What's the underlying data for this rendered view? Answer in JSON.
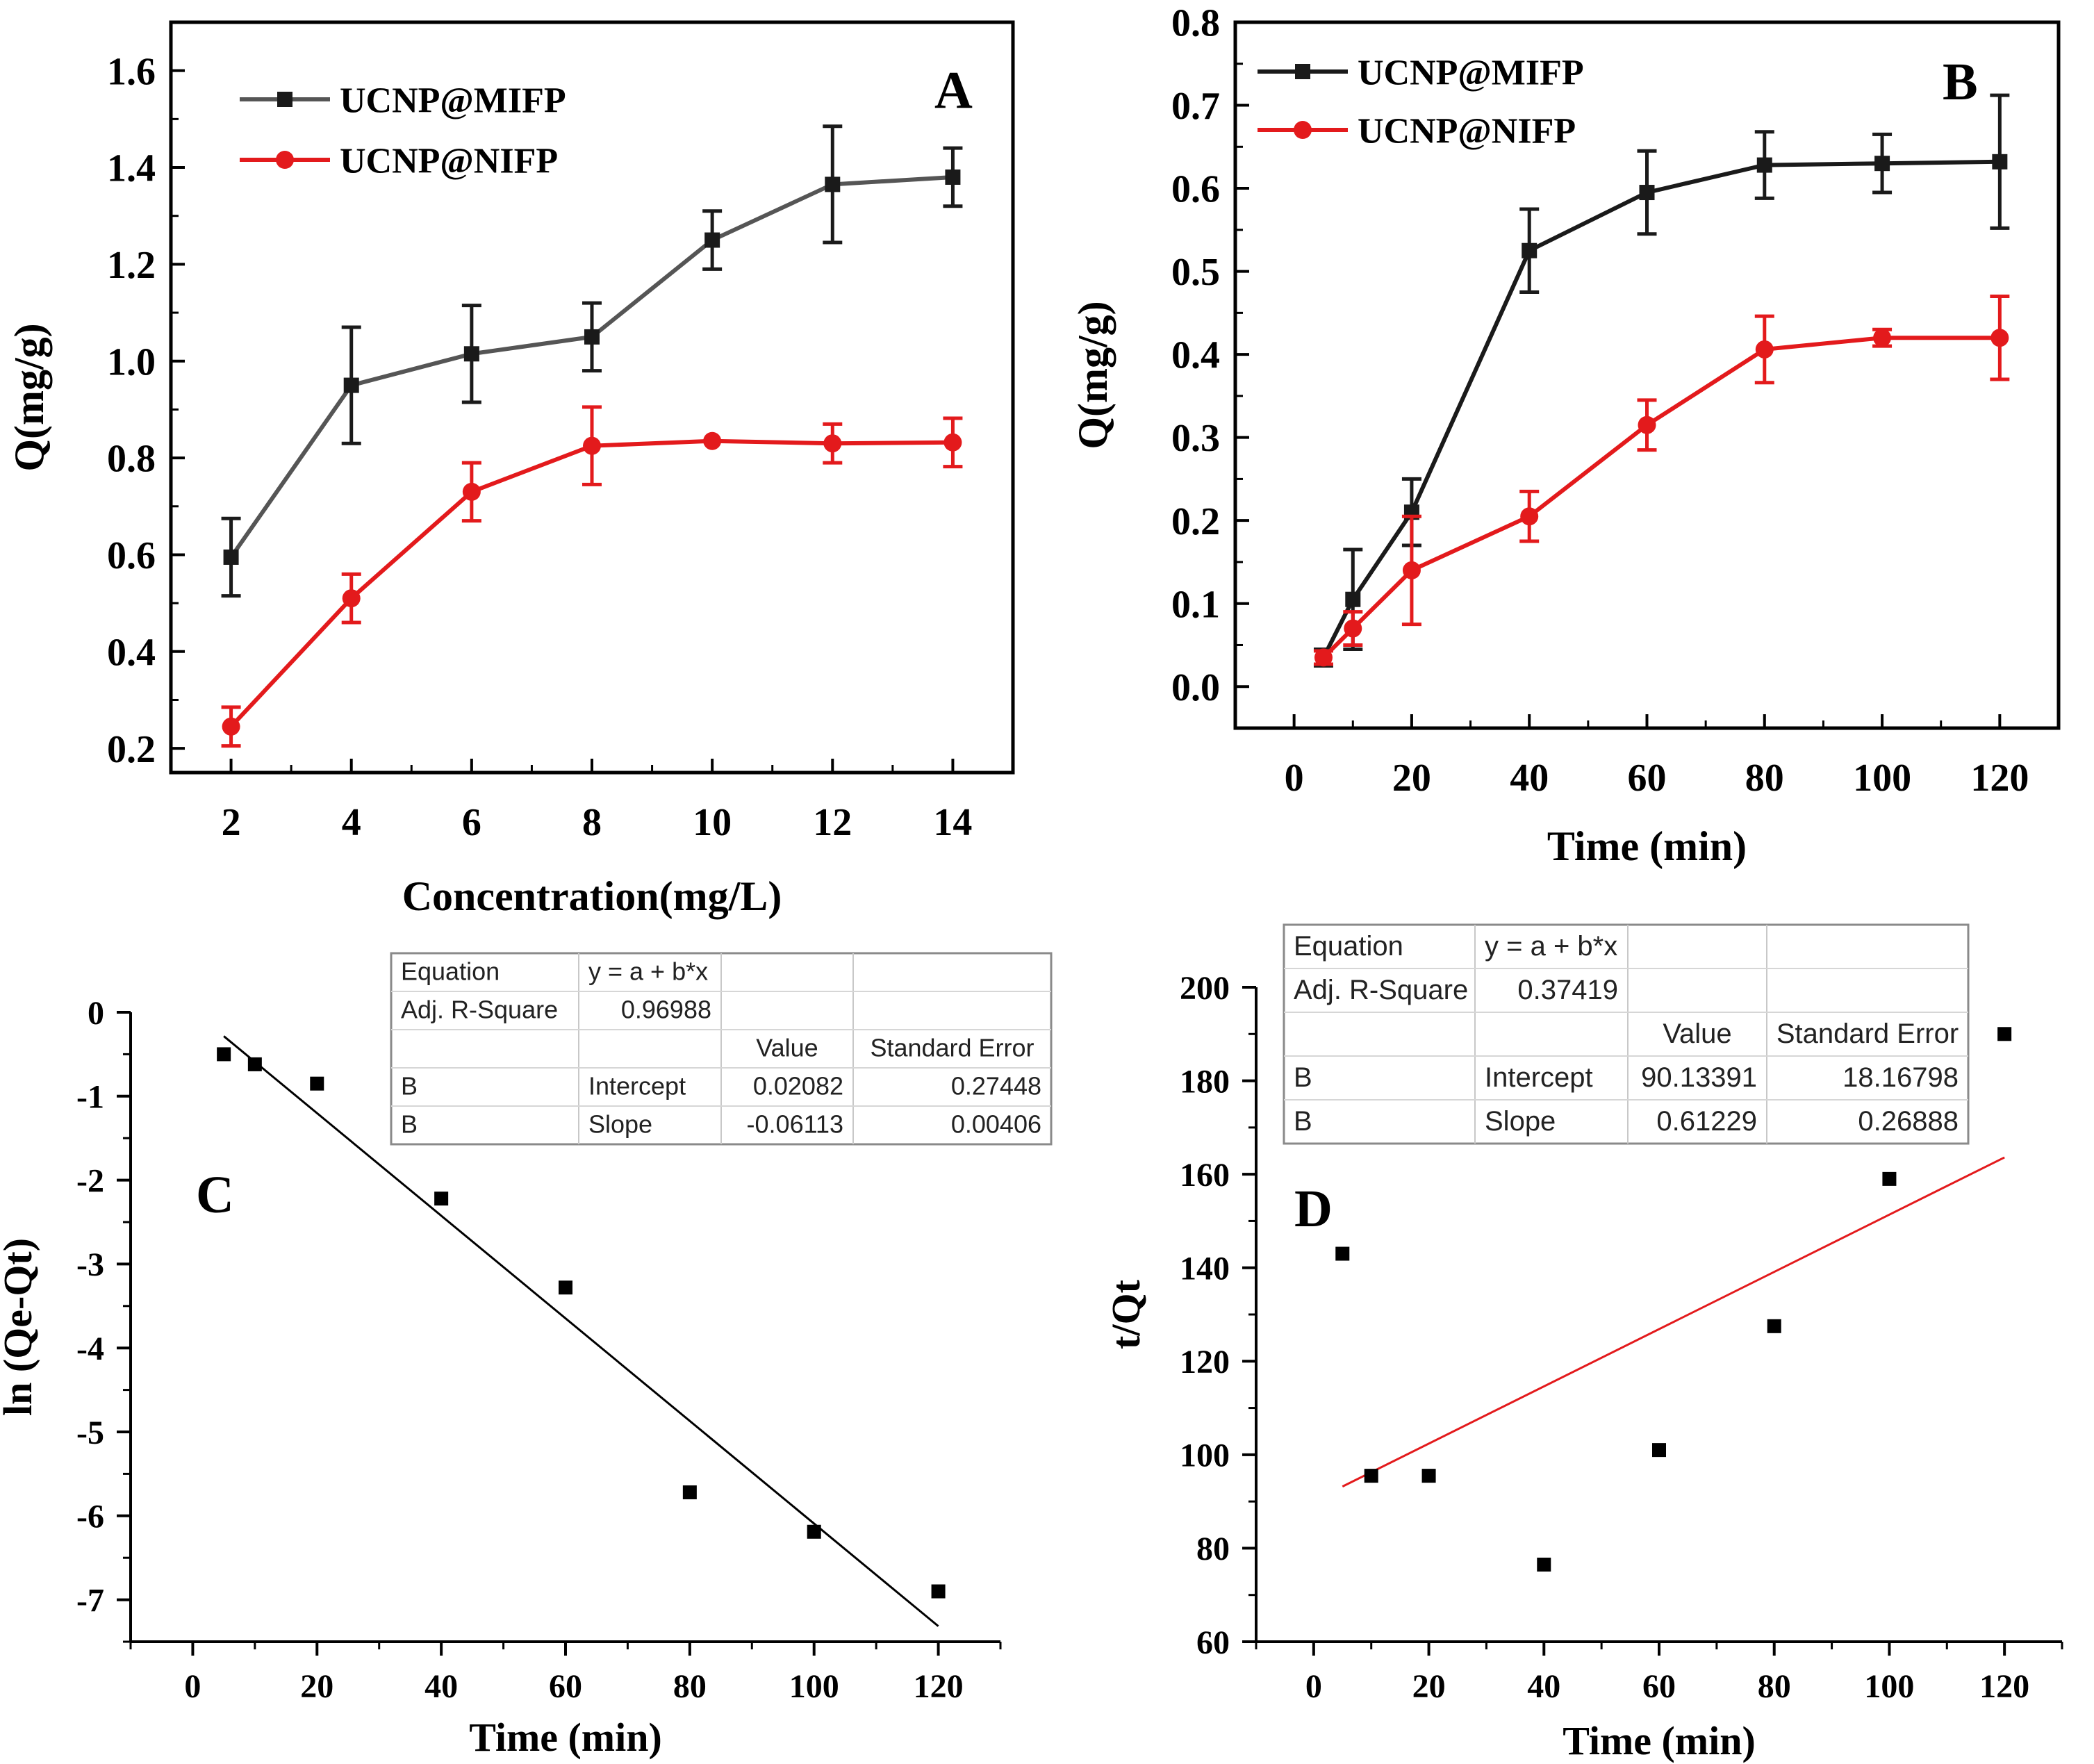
{
  "colors": {
    "black_series": "#1a1a1a",
    "red_series": "#e31a1c",
    "fit_line_red": "#e31a1c",
    "gray_line": "#555555"
  },
  "chart_data": [
    {
      "panel": "A",
      "type": "line",
      "panel_label": "A",
      "xlabel": "Concentration(mg/L)",
      "ylabel": "Q(mg/g)",
      "xlim": [
        1,
        15
      ],
      "ylim": [
        0.15,
        1.7
      ],
      "xticks": [
        2,
        4,
        6,
        8,
        10,
        12,
        14
      ],
      "yticks": [
        0.2,
        0.4,
        0.6,
        0.8,
        1.0,
        1.2,
        1.4,
        1.6
      ],
      "ytick_labels": [
        "0.2",
        "0.4",
        "0.6",
        "0.8",
        "1.0",
        "1.2",
        "1.4",
        "1.6"
      ],
      "legend_position": "top-left",
      "series": [
        {
          "name": "UCNP@MIFP",
          "color": "#1a1a1a",
          "marker": "square",
          "x": [
            2,
            4,
            6,
            8,
            10,
            12,
            14
          ],
          "y": [
            0.595,
            0.95,
            1.015,
            1.05,
            1.25,
            1.365,
            1.38
          ],
          "err": [
            0.08,
            0.12,
            0.1,
            0.07,
            0.06,
            0.12,
            0.06
          ]
        },
        {
          "name": "UCNP@NIFP",
          "color": "#e31a1c",
          "marker": "circle",
          "x": [
            2,
            4,
            6,
            8,
            10,
            12,
            14
          ],
          "y": [
            0.245,
            0.51,
            0.73,
            0.825,
            0.835,
            0.83,
            0.832
          ],
          "err": [
            0.04,
            0.05,
            0.06,
            0.08,
            0.0,
            0.04,
            0.05
          ]
        }
      ]
    },
    {
      "panel": "B",
      "type": "line",
      "panel_label": "B",
      "xlabel": "Time (min)",
      "ylabel": "Q(mg/g)",
      "xlim": [
        -10,
        130
      ],
      "ylim": [
        -0.05,
        0.8
      ],
      "xticks": [
        0,
        20,
        40,
        60,
        80,
        100,
        120
      ],
      "yticks": [
        0.0,
        0.1,
        0.2,
        0.3,
        0.4,
        0.5,
        0.6,
        0.7,
        0.8
      ],
      "ytick_labels": [
        "0.0",
        "0.1",
        "0.2",
        "0.3",
        "0.4",
        "0.5",
        "0.6",
        "0.7",
        "0.8"
      ],
      "legend_position": "top-left",
      "series": [
        {
          "name": "UCNP@MIFP",
          "color": "#1a1a1a",
          "marker": "square",
          "x": [
            5,
            10,
            20,
            40,
            60,
            80,
            100,
            120
          ],
          "y": [
            0.035,
            0.105,
            0.21,
            0.525,
            0.595,
            0.628,
            0.63,
            0.632
          ],
          "err": [
            0.01,
            0.06,
            0.04,
            0.05,
            0.05,
            0.04,
            0.035,
            0.08
          ]
        },
        {
          "name": "UCNP@NIFP",
          "color": "#e31a1c",
          "marker": "circle",
          "x": [
            5,
            10,
            20,
            40,
            60,
            80,
            100,
            120
          ],
          "y": [
            0.035,
            0.07,
            0.14,
            0.205,
            0.315,
            0.406,
            0.42,
            0.42
          ],
          "err": [
            0.008,
            0.02,
            0.065,
            0.03,
            0.03,
            0.04,
            0.01,
            0.05
          ]
        }
      ]
    },
    {
      "panel": "C",
      "type": "scatter",
      "panel_label": "C",
      "xlabel": "Time (min)",
      "ylabel": "ln (Qe-Qt)",
      "xlim": [
        -10,
        130
      ],
      "ylim": [
        -7.5,
        0
      ],
      "xticks": [
        0,
        20,
        40,
        60,
        80,
        100,
        120
      ],
      "yticks": [
        0,
        -1,
        -2,
        -3,
        -4,
        -5,
        -6,
        -7
      ],
      "points": {
        "x": [
          5,
          10,
          20,
          40,
          60,
          80,
          100,
          120
        ],
        "y": [
          -0.5,
          -0.62,
          -0.85,
          -2.22,
          -3.28,
          -5.72,
          -6.19,
          -6.9
        ]
      },
      "fit_line": {
        "x": [
          5,
          120
        ],
        "y": [
          -0.285,
          -7.315
        ],
        "color": "#000000"
      },
      "fit_table": {
        "rows": [
          [
            "Equation",
            "y = a + b*x",
            "",
            ""
          ],
          [
            "Adj. R-Square",
            "0.96988",
            "",
            ""
          ],
          [
            "",
            "",
            "Value",
            "Standard Error"
          ],
          [
            "B",
            "Intercept",
            "0.02082",
            "0.27448"
          ],
          [
            "B",
            "Slope",
            "-0.06113",
            "0.00406"
          ]
        ]
      }
    },
    {
      "panel": "D",
      "type": "scatter",
      "panel_label": "D",
      "xlabel": "Time (min)",
      "ylabel": "t/Qt",
      "xlim": [
        -10,
        130
      ],
      "ylim": [
        60,
        200
      ],
      "xticks": [
        0,
        20,
        40,
        60,
        80,
        100,
        120
      ],
      "yticks": [
        60,
        80,
        100,
        120,
        140,
        160,
        180,
        200
      ],
      "points": {
        "x": [
          5,
          10,
          20,
          40,
          60,
          80,
          100,
          120
        ],
        "y": [
          143,
          95.5,
          95.5,
          76.5,
          101,
          127.5,
          159,
          190
        ]
      },
      "fit_line": {
        "x": [
          5,
          120
        ],
        "y": [
          93.2,
          163.6
        ],
        "color": "#e31a1c"
      },
      "fit_table": {
        "rows": [
          [
            "Equation",
            "y = a + b*x",
            "",
            ""
          ],
          [
            "Adj. R-Square",
            "0.37419",
            "",
            ""
          ],
          [
            "",
            "",
            "Value",
            "Standard Error"
          ],
          [
            "B",
            "Intercept",
            "90.13391",
            "18.16798"
          ],
          [
            "B",
            "Slope",
            "0.61229",
            "0.26888"
          ]
        ]
      }
    }
  ]
}
